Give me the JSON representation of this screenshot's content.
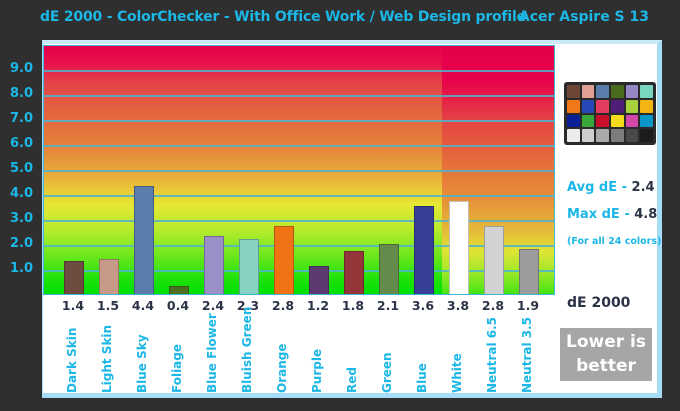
{
  "header": {
    "title": "dE 2000 - ColorChecker - With Office Work / Web Design profile",
    "device": "Acer Aspire S 13"
  },
  "y_ticks": [
    "9.0",
    "8.0",
    "7.0",
    "6.0",
    "5.0",
    "4.0",
    "3.0",
    "2.0",
    "1.0"
  ],
  "legend": {
    "avg_label": "Avg dE - ",
    "avg_value": "2.4",
    "max_label": "Max dE - ",
    "max_value": "4.8",
    "note": "(For all 24 colors)",
    "unit": "dE 2000",
    "lower_is_better": "Lower is better"
  },
  "checker_colors": [
    "#6e4636",
    "#e0a096",
    "#5a7eac",
    "#4a6a1e",
    "#9688c4",
    "#78d6c0",
    "#f07818",
    "#2848b8",
    "#e43c60",
    "#4e1e78",
    "#a8d23c",
    "#f4b414",
    "#0a1e96",
    "#38a638",
    "#c8102a",
    "#f4dc1c",
    "#d446a8",
    "#0a96c6",
    "#ececec",
    "#cfcfcf",
    "#aaaaaa",
    "#7c7c7c",
    "#494949",
    "#1c1c1c"
  ],
  "chart_data": {
    "type": "bar",
    "title": "dE 2000 - ColorChecker - With Office Work / Web Design profile",
    "subtitle": "Acer Aspire S 13",
    "xlabel": "",
    "ylabel": "dE 2000",
    "ylim": [
      0,
      10
    ],
    "yticks": [
      1.0,
      2.0,
      3.0,
      4.0,
      5.0,
      6.0,
      7.0,
      8.0,
      9.0
    ],
    "grid": true,
    "categories": [
      "Dark Skin",
      "Light Skin",
      "Blue Sky",
      "Foliage",
      "Blue Flower",
      "Bluish Green",
      "Orange",
      "Purple",
      "Red",
      "Green",
      "Blue",
      "White",
      "Neutral 6.5",
      "Neutral 3.5"
    ],
    "values": [
      1.4,
      1.5,
      4.4,
      0.4,
      2.4,
      2.3,
      2.8,
      1.2,
      1.8,
      2.1,
      3.6,
      3.8,
      2.8,
      1.9
    ],
    "value_labels": [
      "1.4",
      "1.5",
      "4.4",
      "0.4",
      "2.4",
      "2.3",
      "2.8",
      "1.2",
      "1.8",
      "2.1",
      "3.6",
      "3.8",
      "2.8",
      "1.9"
    ],
    "bar_colors": [
      "#6e4b3f",
      "#c79a88",
      "#5b7dab",
      "#4c7020",
      "#9a8fc6",
      "#86d3c4",
      "#f07414",
      "#5c3c70",
      "#943639",
      "#648a4c",
      "#363f94",
      "#ffffff",
      "#d2d2d2",
      "#9c9c9c"
    ],
    "annotations": [
      "Avg dE - 2.4",
      "Max dE - 4.8",
      "(For all 24 colors)",
      "Lower is better"
    ]
  }
}
